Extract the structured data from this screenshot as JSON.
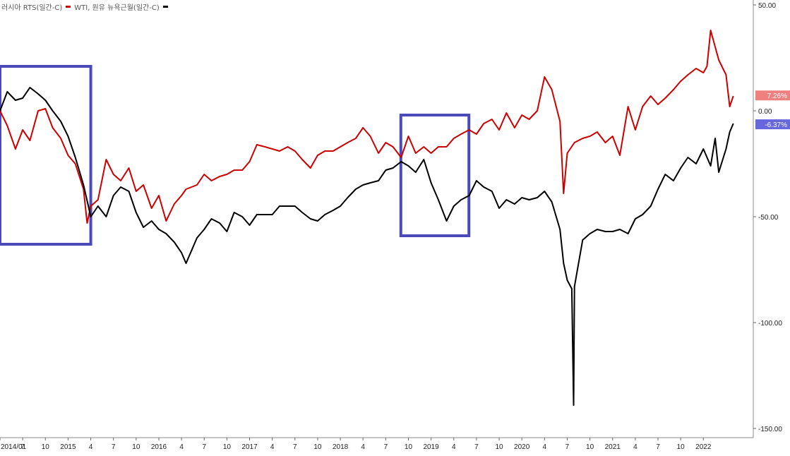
{
  "chart_data": {
    "type": "line",
    "legend": [
      {
        "label": "러시아 RTS(일간-C)",
        "color": "#cc0000"
      },
      {
        "label": "WTI, 원유 뉴욕근월(일간-C)",
        "color": "#000000"
      }
    ],
    "ylim": [
      -150,
      50
    ],
    "y_ticks": [
      "50.00",
      "0.00",
      "-50.00",
      "-100.00",
      "-150.00"
    ],
    "x_tick_labels": [
      "2014/01",
      "7",
      "10",
      "2015",
      "4",
      "7",
      "10",
      "2016",
      "4",
      "7",
      "10",
      "2017",
      "4",
      "7",
      "10",
      "2018",
      "4",
      "7",
      "10",
      "2019",
      "4",
      "7",
      "10",
      "2020",
      "4",
      "7",
      "10",
      "2021",
      "4",
      "7",
      "10",
      "2022"
    ],
    "last_value_badges": [
      {
        "label": "7.26%",
        "value": 7.26,
        "color": "#f08080"
      },
      {
        "label": "-6.37%",
        "value": -6.37,
        "color": "#6666dd"
      }
    ],
    "highlight_boxes": [
      {
        "x_start": "2014-01",
        "x_end": "2015-01",
        "y_top": 21,
        "y_bottom": -63,
        "color": "#4a4ab8"
      },
      {
        "x_start": "2018-06",
        "x_end": "2019-03",
        "y_top": -2,
        "y_bottom": -59,
        "color": "#4a4ab8"
      }
    ],
    "series": [
      {
        "name": "러시아 RTS(일간-C)",
        "color": "#cc0000",
        "x": [
          2014.0,
          2014.08,
          2014.17,
          2014.25,
          2014.33,
          2014.42,
          2014.5,
          2014.58,
          2014.67,
          2014.75,
          2014.83,
          2014.92,
          2014.96,
          2015.0,
          2015.08,
          2015.17,
          2015.25,
          2015.33,
          2015.42,
          2015.5,
          2015.58,
          2015.67,
          2015.75,
          2015.83,
          2015.92,
          2016.0,
          2016.05,
          2016.17,
          2016.25,
          2016.33,
          2016.42,
          2016.5,
          2016.58,
          2016.67,
          2016.75,
          2016.83,
          2016.92,
          2017.0,
          2017.08,
          2017.17,
          2017.25,
          2017.33,
          2017.42,
          2017.5,
          2017.58,
          2017.67,
          2017.75,
          2017.83,
          2017.92,
          2018.0,
          2018.08,
          2018.17,
          2018.25,
          2018.33,
          2018.42,
          2018.5,
          2018.58,
          2018.67,
          2018.75,
          2018.83,
          2018.92,
          2019.0,
          2019.08,
          2019.17,
          2019.25,
          2019.33,
          2019.42,
          2019.5,
          2019.58,
          2019.67,
          2019.75,
          2019.83,
          2019.92,
          2020.0,
          2020.08,
          2020.17,
          2020.21,
          2020.25,
          2020.33,
          2020.42,
          2020.5,
          2020.58,
          2020.67,
          2020.75,
          2020.83,
          2020.92,
          2021.0,
          2021.08,
          2021.17,
          2021.25,
          2021.33,
          2021.42,
          2021.5,
          2021.58,
          2021.67,
          2021.75,
          2021.79,
          2021.83,
          2021.92,
          2022.0,
          2022.04,
          2022.08
        ],
        "y": [
          0,
          -7,
          -18,
          -9,
          -14,
          0,
          1,
          -8,
          -13,
          -21,
          -25,
          -37,
          -53,
          -45,
          -42,
          -23,
          -30,
          -33,
          -27,
          -38,
          -35,
          -46,
          -40,
          -52,
          -44,
          -40,
          -37,
          -35,
          -30,
          -33,
          -31,
          -30,
          -28,
          -28,
          -24,
          -16,
          -17,
          -18,
          -19,
          -17,
          -19,
          -23,
          -27,
          -21,
          -19,
          -19,
          -17,
          -15,
          -13,
          -8,
          -12,
          -20,
          -15,
          -17,
          -22,
          -12,
          -20,
          -17,
          -20,
          -17,
          -17,
          -13,
          -11,
          -9,
          -11,
          -6,
          -4,
          -9,
          -1,
          -8,
          -2,
          -4,
          0,
          16,
          10,
          -5,
          -39,
          -20,
          -15,
          -13,
          -12,
          -10,
          -15,
          -12,
          -21,
          2,
          -9,
          2,
          7,
          3,
          6,
          10,
          14,
          17,
          20,
          18,
          21,
          38,
          24,
          17,
          2,
          7
        ]
      },
      {
        "name": "WTI, 원유 뉴욕근월(일간-C)",
        "color": "#000000",
        "x": [
          2014.0,
          2014.08,
          2014.17,
          2014.25,
          2014.33,
          2014.42,
          2014.5,
          2014.58,
          2014.67,
          2014.75,
          2014.83,
          2014.92,
          2015.0,
          2015.08,
          2015.17,
          2015.25,
          2015.33,
          2015.42,
          2015.5,
          2015.58,
          2015.67,
          2015.75,
          2015.83,
          2015.92,
          2016.0,
          2016.05,
          2016.17,
          2016.25,
          2016.33,
          2016.42,
          2016.5,
          2016.58,
          2016.67,
          2016.75,
          2016.83,
          2016.92,
          2017.0,
          2017.08,
          2017.17,
          2017.25,
          2017.33,
          2017.42,
          2017.5,
          2017.58,
          2017.67,
          2017.75,
          2017.83,
          2017.92,
          2018.0,
          2018.08,
          2018.17,
          2018.25,
          2018.33,
          2018.42,
          2018.5,
          2018.58,
          2018.67,
          2018.75,
          2018.83,
          2018.92,
          2019.0,
          2019.08,
          2019.17,
          2019.25,
          2019.33,
          2019.42,
          2019.5,
          2019.58,
          2019.67,
          2019.75,
          2019.83,
          2019.92,
          2020.0,
          2020.08,
          2020.17,
          2020.21,
          2020.25,
          2020.3,
          2020.32,
          2020.33,
          2020.42,
          2020.5,
          2020.58,
          2020.67,
          2020.75,
          2020.83,
          2020.92,
          2021.0,
          2021.08,
          2021.17,
          2021.25,
          2021.33,
          2021.42,
          2021.5,
          2021.58,
          2021.67,
          2021.75,
          2021.83,
          2021.88,
          2021.92,
          2022.0,
          2022.04,
          2022.08
        ],
        "y": [
          0,
          9,
          5,
          6,
          11,
          8,
          5,
          0,
          -5,
          -12,
          -22,
          -35,
          -50,
          -45,
          -50,
          -40,
          -36,
          -38,
          -48,
          -55,
          -52,
          -56,
          -58,
          -62,
          -67,
          -72,
          -60,
          -56,
          -51,
          -53,
          -57,
          -48,
          -50,
          -54,
          -49,
          -49,
          -49,
          -45,
          -45,
          -45,
          -48,
          -51,
          -52,
          -49,
          -47,
          -45,
          -41,
          -37,
          -35,
          -34,
          -33,
          -28,
          -27,
          -24,
          -26,
          -29,
          -23,
          -34,
          -42,
          -52,
          -45,
          -42,
          -40,
          -33,
          -36,
          -38,
          -46,
          -42,
          -44,
          -41,
          -42,
          -41,
          -38,
          -43,
          -56,
          -72,
          -80,
          -84,
          -139,
          -83,
          -61,
          -58,
          -56,
          -57,
          -57,
          -56,
          -58,
          -51,
          -49,
          -45,
          -37,
          -30,
          -33,
          -27,
          -22,
          -25,
          -18,
          -26,
          -13,
          -29,
          -18,
          -10,
          -6
        ]
      }
    ]
  }
}
